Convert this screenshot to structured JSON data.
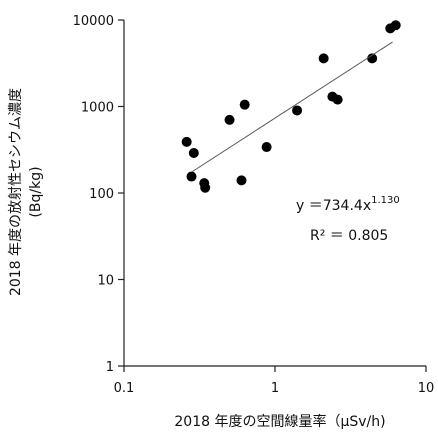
{
  "chart_data": {
    "type": "scatter",
    "xscale": "log",
    "yscale": "log",
    "xlim": [
      0.1,
      10
    ],
    "ylim": [
      1,
      10000
    ],
    "xticks": [
      {
        "value": 0.1,
        "label": "0.1"
      },
      {
        "value": 1,
        "label": "1"
      },
      {
        "value": 10,
        "label": "10"
      }
    ],
    "yticks": [
      {
        "value": 1,
        "label": "1"
      },
      {
        "value": 10,
        "label": "10"
      },
      {
        "value": 100,
        "label": "100"
      },
      {
        "value": 1000,
        "label": "1000"
      },
      {
        "value": 10000,
        "label": "10000"
      }
    ],
    "xlabel": "2018 年度の空間線量率（μSv/h)",
    "ylabel_line1": "2018 年度の放射性セシウム濃度",
    "ylabel_line2": "(Bq/kg)",
    "grid": false,
    "legend": "none",
    "series": [
      {
        "points": [
          {
            "x": 0.26,
            "y": 390
          },
          {
            "x": 0.28,
            "y": 155
          },
          {
            "x": 0.29,
            "y": 290
          },
          {
            "x": 0.34,
            "y": 130
          },
          {
            "x": 0.345,
            "y": 115
          },
          {
            "x": 0.5,
            "y": 700
          },
          {
            "x": 0.6,
            "y": 140
          },
          {
            "x": 0.63,
            "y": 1050
          },
          {
            "x": 0.88,
            "y": 340
          },
          {
            "x": 1.4,
            "y": 900
          },
          {
            "x": 2.1,
            "y": 3600
          },
          {
            "x": 2.4,
            "y": 1300
          },
          {
            "x": 2.6,
            "y": 1200
          },
          {
            "x": 4.4,
            "y": 3600
          },
          {
            "x": 5.8,
            "y": 8000
          },
          {
            "x": 6.3,
            "y": 8700
          }
        ]
      }
    ],
    "trendline": {
      "type": "power",
      "coefficient": 734.4,
      "exponent": 1.13,
      "x_range": [
        0.28,
        6.0
      ]
    },
    "annotations": {
      "equation_prefix": "y ＝734.4x",
      "equation_exponent": "1.130",
      "r2_label": "R² ＝ 0.805"
    },
    "colors": {
      "points": "#000000",
      "trendline": "#555555",
      "axis": "#222222"
    }
  }
}
